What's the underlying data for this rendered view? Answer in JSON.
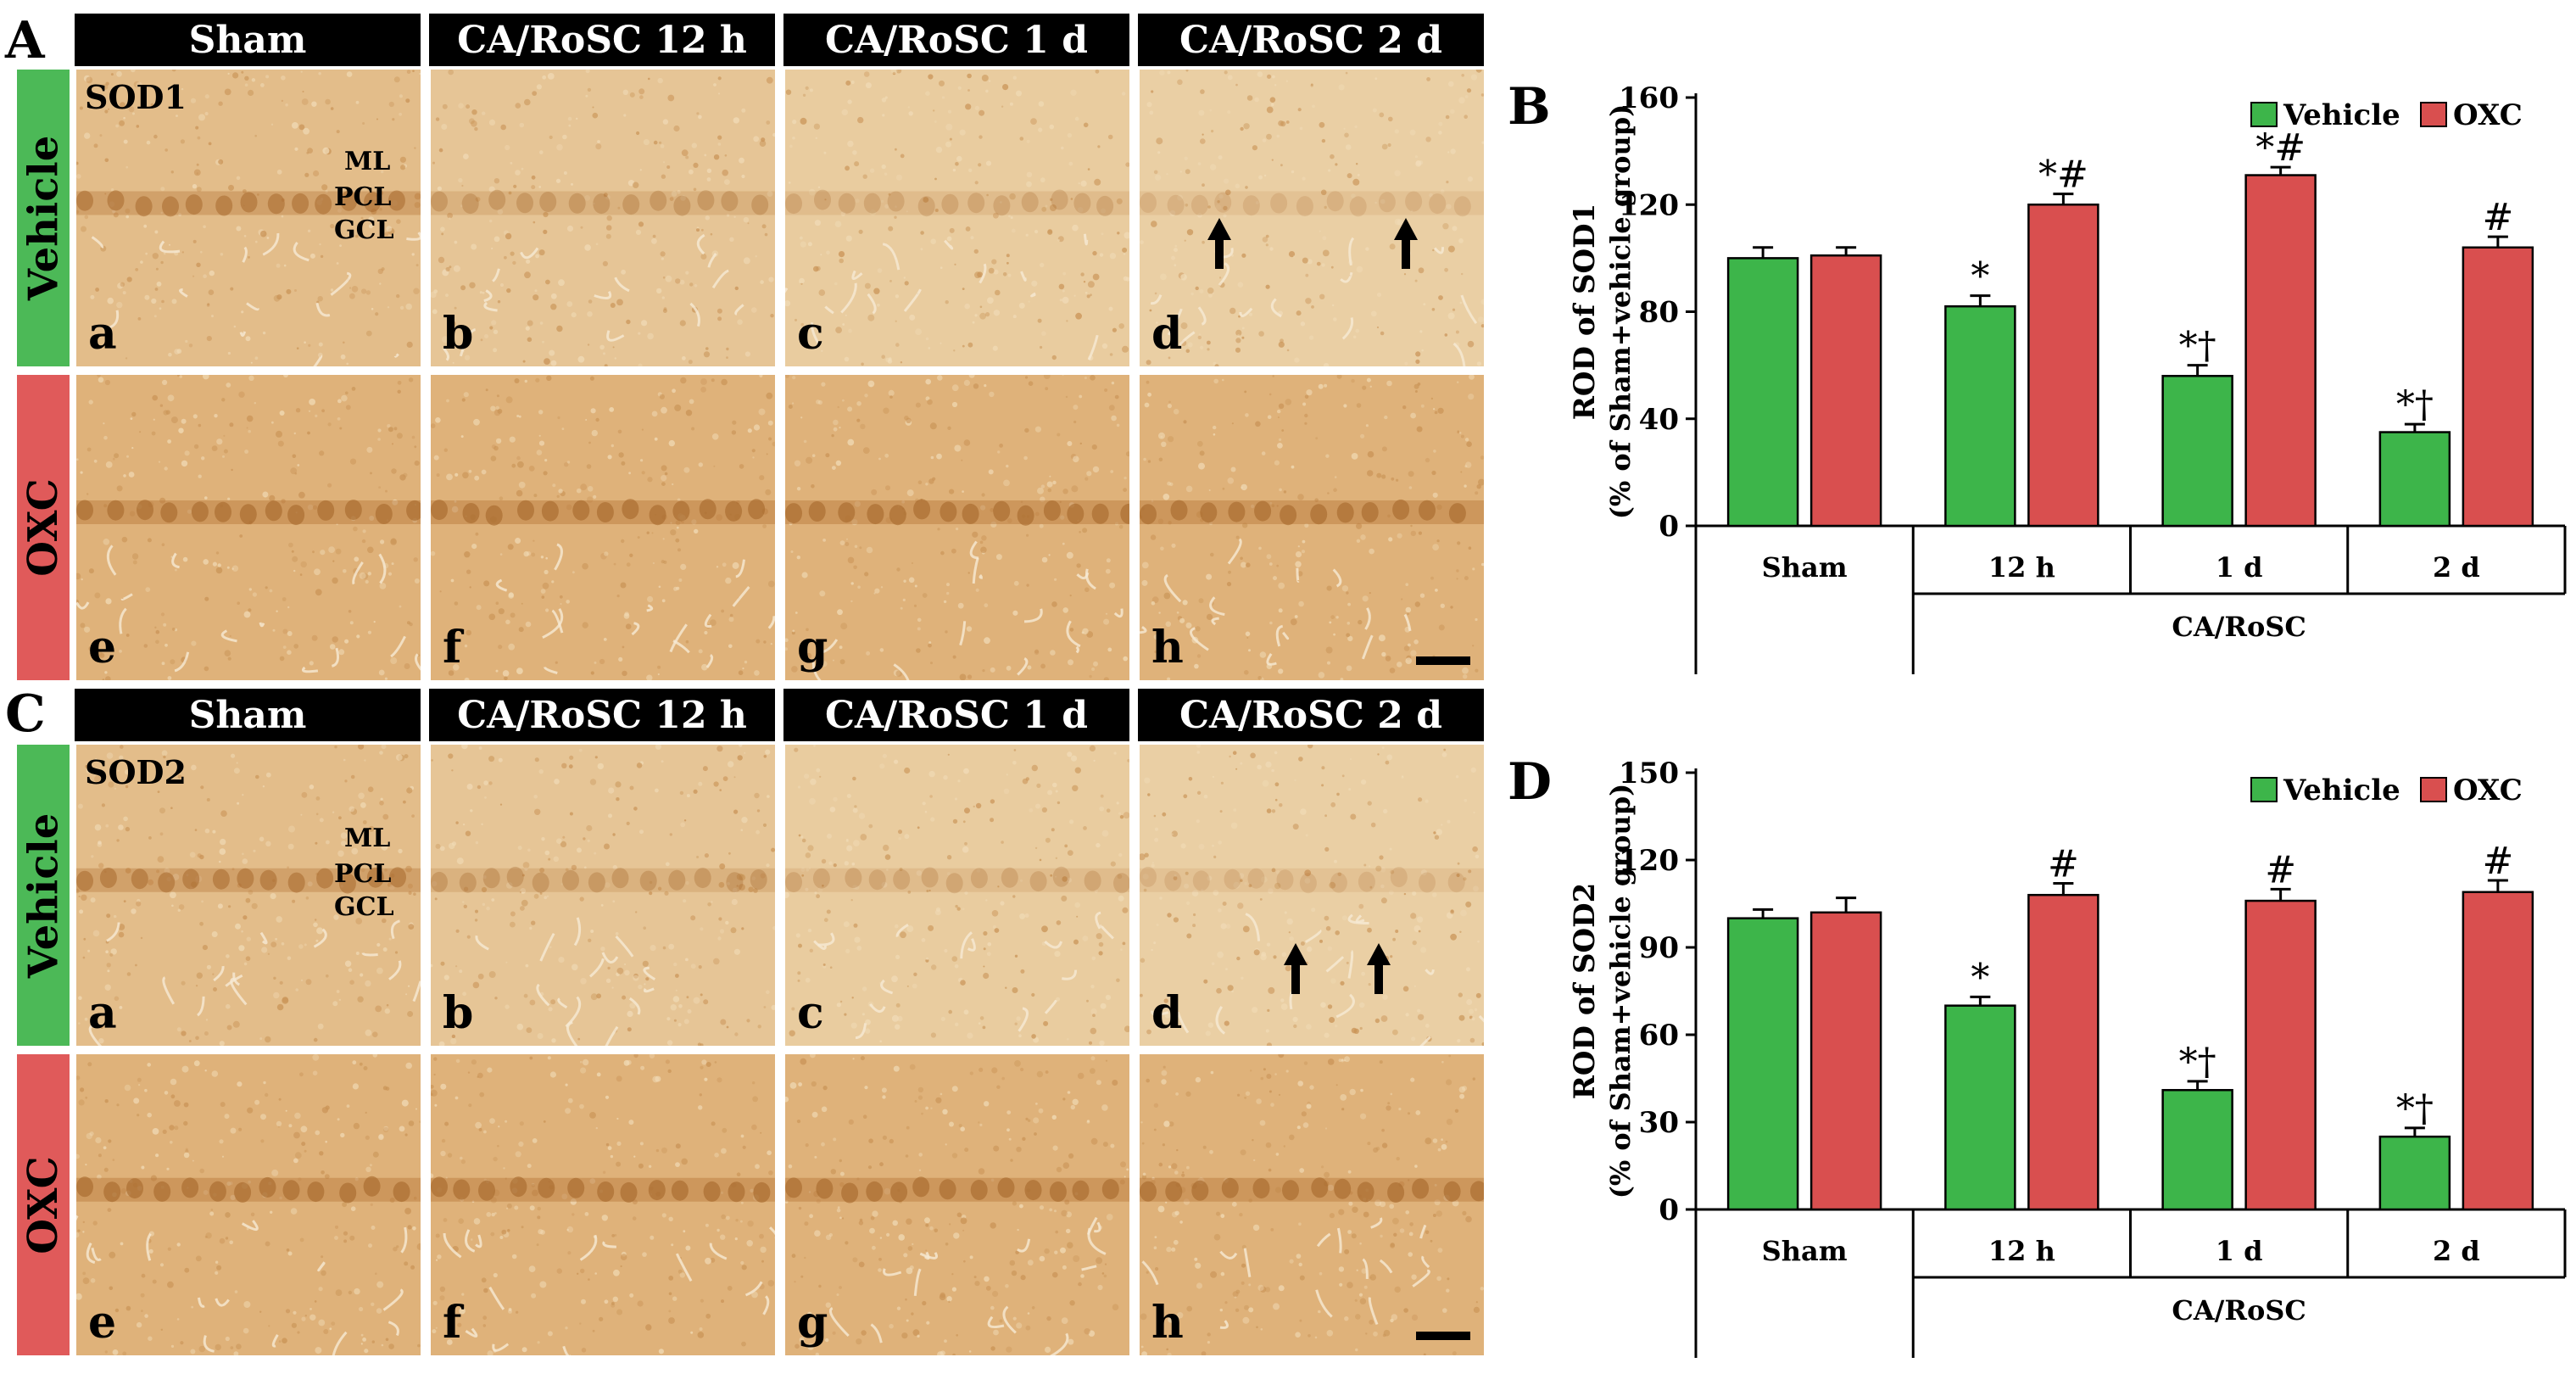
{
  "panels": {
    "A": "A",
    "B": "B",
    "C": "C",
    "D": "D"
  },
  "headers": [
    "Sham",
    "CA/RoSC 12 h",
    "CA/RoSC 1 d",
    "CA/RoSC 2 d"
  ],
  "groups": {
    "vehicle": "Vehicle",
    "oxc": "OXC"
  },
  "letters": [
    "a",
    "b",
    "c",
    "d",
    "e",
    "f",
    "g",
    "h"
  ],
  "markers": {
    "sod1": "SOD1",
    "sod2": "SOD2"
  },
  "layers": [
    "ML",
    "PCL",
    "GCL"
  ],
  "colors": {
    "vehicle": "#3db54a",
    "oxc": "#d94f4f",
    "vehicle_tag": "#4cb957",
    "oxc_tag": "#e05a5a",
    "tissue": "#e0b784",
    "tissue_dark": "#b87a3c"
  },
  "chart_data": [
    {
      "type": "bar",
      "categories": [
        "Sham",
        "12 h",
        "1 d",
        "2 d"
      ],
      "group_label": "CA/RoSC",
      "ylabel": "ROD of SOD1",
      "ylabel2": "(% of Sham+vehicle group)",
      "ylim": [
        0,
        160
      ],
      "yticks": [
        "0",
        "40",
        "80",
        "120",
        "160"
      ],
      "legend_position": "top-right",
      "series": [
        {
          "name": "Vehicle",
          "values": [
            100,
            82,
            56,
            35
          ],
          "errors": [
            4,
            4,
            4,
            3
          ],
          "marks": [
            "",
            "*",
            "*†",
            "*†"
          ]
        },
        {
          "name": "OXC",
          "values": [
            101,
            120,
            131,
            104
          ],
          "errors": [
            3,
            4,
            3,
            4
          ],
          "marks": [
            "",
            "*#",
            "*#",
            "#"
          ]
        }
      ]
    },
    {
      "type": "bar",
      "categories": [
        "Sham",
        "12 h",
        "1 d",
        "2 d"
      ],
      "group_label": "CA/RoSC",
      "ylabel": "ROD of SOD2",
      "ylabel2": "(% of Sham+vehicle group)",
      "ylim": [
        0,
        150
      ],
      "yticks": [
        "0",
        "30",
        "60",
        "90",
        "120",
        "150"
      ],
      "legend_position": "top-right",
      "series": [
        {
          "name": "Vehicle",
          "values": [
            100,
            70,
            41,
            25
          ],
          "errors": [
            3,
            3,
            3,
            3
          ],
          "marks": [
            "",
            "*",
            "*†",
            "*†"
          ]
        },
        {
          "name": "OXC",
          "values": [
            102,
            108,
            106,
            109
          ],
          "errors": [
            5,
            4,
            4,
            4
          ],
          "marks": [
            "",
            "#",
            "#",
            "#"
          ]
        }
      ]
    }
  ]
}
